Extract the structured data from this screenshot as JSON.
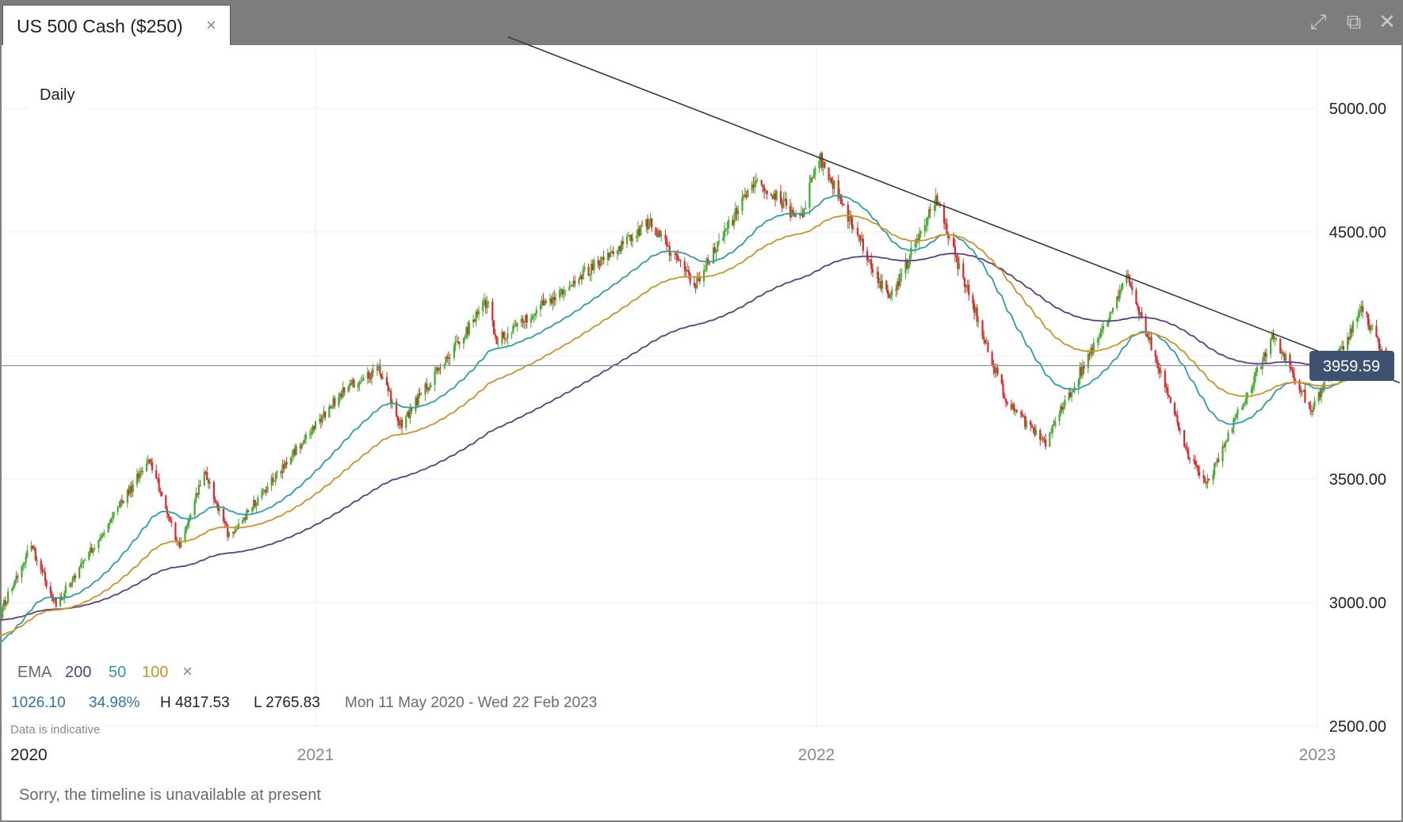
{
  "tab": {
    "title": "US 500 Cash ($250)",
    "close_label": "×"
  },
  "window_controls": [
    {
      "name": "expand-icon",
      "glyph": "⤢"
    },
    {
      "name": "popout-icon",
      "glyph": "⧉"
    },
    {
      "name": "close-window-icon",
      "glyph": "✕"
    }
  ],
  "chart_data": {
    "type": "candlestick",
    "interval_label": "Daily",
    "y_axis": {
      "ticks": [
        2500,
        3000,
        3500,
        4000,
        4500,
        5000
      ],
      "tick_labels": [
        "2500.00",
        "3000.00",
        "3500.00",
        "4500.00",
        "5000.00"
      ],
      "ylim": [
        2500,
        5250
      ]
    },
    "x_axis": {
      "tick_labels": [
        "2020",
        "2021",
        "2022",
        "2023"
      ],
      "xlim": [
        "2020-05-11",
        "2023-02-22"
      ]
    },
    "current_price": {
      "value": 3959.59,
      "label": "3959.59"
    },
    "key_points": [
      {
        "date": "2020-05-11",
        "value": 2900
      },
      {
        "date": "2020-06-08",
        "value": 3230
      },
      {
        "date": "2020-06-26",
        "value": 2990
      },
      {
        "date": "2020-09-02",
        "value": 3580
      },
      {
        "date": "2020-09-24",
        "value": 3220
      },
      {
        "date": "2020-10-12",
        "value": 3540
      },
      {
        "date": "2020-10-30",
        "value": 3270
      },
      {
        "date": "2021-01-20",
        "value": 3850
      },
      {
        "date": "2021-02-16",
        "value": 3950
      },
      {
        "date": "2021-03-04",
        "value": 3720
      },
      {
        "date": "2021-05-07",
        "value": 4230
      },
      {
        "date": "2021-05-12",
        "value": 4060
      },
      {
        "date": "2021-09-02",
        "value": 4540
      },
      {
        "date": "2021-10-04",
        "value": 4280
      },
      {
        "date": "2021-11-18",
        "value": 4720
      },
      {
        "date": "2021-12-20",
        "value": 4550
      },
      {
        "date": "2022-01-03",
        "value": 4810
      },
      {
        "date": "2022-02-23",
        "value": 4220
      },
      {
        "date": "2022-03-29",
        "value": 4630
      },
      {
        "date": "2022-05-20",
        "value": 3810
      },
      {
        "date": "2022-06-16",
        "value": 3640
      },
      {
        "date": "2022-08-16",
        "value": 4320
      },
      {
        "date": "2022-09-30",
        "value": 3580
      },
      {
        "date": "2022-10-13",
        "value": 3490
      },
      {
        "date": "2022-11-30",
        "value": 4080
      },
      {
        "date": "2022-12-28",
        "value": 3780
      },
      {
        "date": "2023-02-02",
        "value": 4190
      },
      {
        "date": "2023-02-22",
        "value": 3959.59
      }
    ],
    "trendline": {
      "start": {
        "date": "2021-05-21",
        "value": 5290
      },
      "end": {
        "date": "2023-03-02",
        "value": 3890
      }
    },
    "indicators": {
      "name": "EMA",
      "periods": [
        {
          "period": "200",
          "color": "#5b3f86"
        },
        {
          "period": "50",
          "color": "#2a9fac"
        },
        {
          "period": "100",
          "color": "#cf9226"
        }
      ],
      "remove_label": "×"
    },
    "colors": {
      "up": "#3fae2a",
      "down": "#e0262c",
      "trend": "#3a3a3a",
      "price_tag": "#3d5170"
    },
    "stats": {
      "change": "1026.10",
      "change_pct": "34.98%",
      "high": "H 4817.53",
      "low": "L 2765.83",
      "range": "Mon 11 May 2020 - Wed 22 Feb 2023"
    },
    "disclaimer": "Data is indicative"
  },
  "footer": {
    "timeline_message": "Sorry, the timeline is unavailable at present"
  }
}
